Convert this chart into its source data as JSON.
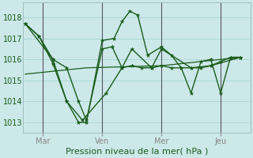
{
  "background_color": "#cce8e8",
  "grid_color": "#aad4d4",
  "line_color": "#1a5c1a",
  "vline_color": "#555566",
  "xlabel": "Pression niveau de la mer( hPa )",
  "day_labels": [
    "Mar",
    "Ven",
    "Mer",
    "Jeu"
  ],
  "day_positions": [
    1,
    4,
    7,
    10
  ],
  "vline_positions": [
    1,
    4,
    7,
    10
  ],
  "xlim": [
    0.0,
    11.5
  ],
  "ylim": [
    1012.5,
    1018.7
  ],
  "yticks": [
    1013,
    1014,
    1015,
    1016,
    1017,
    1018
  ],
  "series": [
    {
      "x": [
        0.1,
        0.8,
        1.5,
        2.2,
        2.8,
        3.2,
        4.0,
        4.6,
        5.0,
        5.4,
        5.8,
        6.3,
        7.0,
        7.5,
        8.0,
        8.5,
        9.0,
        9.5,
        10.0,
        10.5,
        11.0
      ],
      "y": [
        1017.7,
        1017.1,
        1015.8,
        1014.0,
        1013.0,
        1013.0,
        1016.9,
        1017.0,
        1017.8,
        1018.3,
        1018.1,
        1016.2,
        1016.6,
        1016.2,
        1015.6,
        1014.4,
        1015.9,
        1016.0,
        1014.4,
        1016.1,
        1016.1
      ]
    },
    {
      "x": [
        0.1,
        0.8,
        1.5,
        2.2,
        2.8,
        3.2,
        4.0,
        4.5,
        5.0,
        5.5,
        6.0,
        6.5,
        7.0,
        7.5,
        8.0,
        8.5,
        9.0,
        9.5,
        10.0,
        10.5,
        11.0
      ],
      "y": [
        1017.7,
        1017.1,
        1016.0,
        1015.6,
        1014.0,
        1013.1,
        1016.5,
        1016.6,
        1015.6,
        1015.7,
        1015.6,
        1015.6,
        1015.7,
        1015.6,
        1015.6,
        1015.6,
        1015.6,
        1015.7,
        1015.9,
        1016.1,
        1016.1
      ]
    },
    {
      "x": [
        0.1,
        3.2,
        7.0,
        11.0
      ],
      "y": [
        1015.3,
        1015.6,
        1015.7,
        1016.1
      ]
    },
    {
      "x": [
        0.1,
        1.5,
        2.2,
        3.0,
        4.2,
        5.0,
        5.5,
        6.5,
        7.0,
        8.5,
        9.5,
        11.0
      ],
      "y": [
        1017.7,
        1016.0,
        1014.0,
        1013.1,
        1014.4,
        1015.6,
        1016.5,
        1015.6,
        1016.5,
        1015.6,
        1015.7,
        1016.1
      ]
    }
  ],
  "marker_series": [
    0,
    1,
    3
  ],
  "no_marker_series": [
    2
  ],
  "xlabel_fontsize": 8,
  "tick_fontsize": 7
}
